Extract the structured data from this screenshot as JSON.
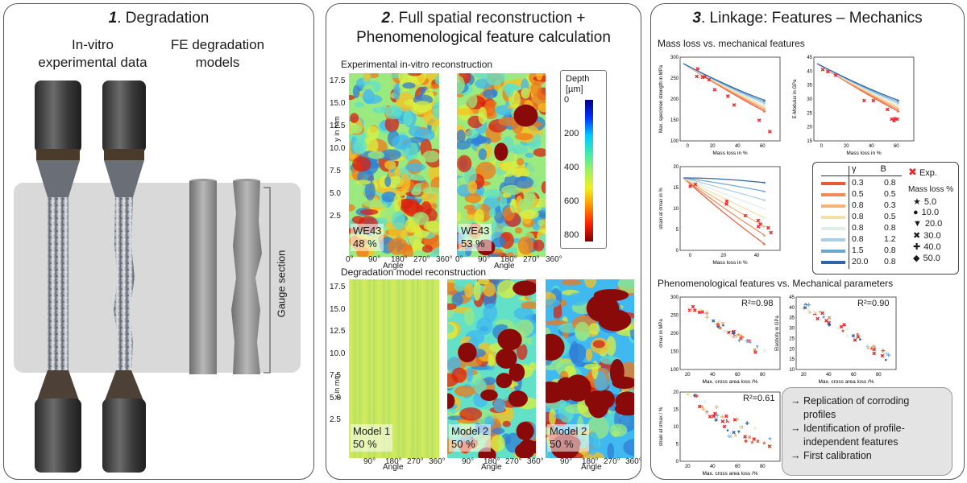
{
  "panel1": {
    "title_num": "1",
    "title_text": ". Degradation",
    "invitro_label_line1": "In-vitro",
    "invitro_label_line2": "experimental data",
    "fe_label_line1": "FE degradation",
    "fe_label_line2": "models",
    "gauge_label": "Gauge section"
  },
  "panel2": {
    "title_num": "2",
    "title_line1": ". Full spatial reconstruction +",
    "title_line2": "Phenomenological feature calculation",
    "exp_heading": "Experimental in-vitro reconstruction",
    "model_heading": "Degradation model reconstruction",
    "y_label": "y in mm",
    "x_label": "Angle",
    "y_ticks": [
      "17.5",
      "15.0",
      "12.5",
      "10.0",
      "7.5",
      "5.0",
      "2.5",
      "0"
    ],
    "x_ticks": [
      "0°",
      "90°",
      "180°",
      "270°",
      "360°"
    ],
    "x_ticks_model": [
      "90°",
      "180°",
      "270°",
      "360°"
    ],
    "maps": [
      {
        "name": "WE43",
        "value": "48 %"
      },
      {
        "name": "WE43",
        "value": "53 %"
      },
      {
        "name": "Model 1",
        "value": "50 %"
      },
      {
        "name": "Model 2",
        "value": "50 %"
      },
      {
        "name": "Model 2",
        "value": "50 %"
      }
    ],
    "colorbar": {
      "title_line1": "Depth",
      "title_line2": "[µm]",
      "ticks": [
        "0",
        "200",
        "400",
        "600",
        "800"
      ]
    }
  },
  "panel3": {
    "title_num": "3",
    "title_text": ". Linkage: Features – Mechanics",
    "mass_loss_heading": "Mass loss vs. mechanical features",
    "pheno_heading": "Phenomenological features vs. Mechanical parameters",
    "plots": {
      "strength": {
        "ylabel": "Max. specimen strength in MPa",
        "xlabel": "Mass loss in %",
        "y_ticks": [
          "300",
          "250",
          "200",
          "150",
          "100"
        ],
        "x_ticks": [
          "0",
          "20",
          "40",
          "60"
        ]
      },
      "emod": {
        "ylabel": "E-Modulus in GPa",
        "xlabel": "Mass loss in %",
        "y_ticks": [
          "45",
          "40",
          "35",
          "30",
          "25",
          "20",
          "15"
        ],
        "x_ticks": [
          "0",
          "20",
          "40",
          "60"
        ]
      },
      "strain": {
        "ylabel": "strain at σmax in %",
        "xlabel": "Mass loss in %",
        "y_ticks": [
          "20",
          "15",
          "10",
          "5",
          "0"
        ],
        "x_ticks": [
          "0",
          "20",
          "40"
        ]
      },
      "sigma_area": {
        "ylabel": "σmax in MPa",
        "xlabel": "Max. cross area loss /%",
        "r2": "R²=0.98",
        "y_ticks": [
          "300",
          "250",
          "200",
          "150",
          "100"
        ],
        "x_ticks": [
          "20",
          "40",
          "60",
          "80"
        ]
      },
      "elast_area": {
        "ylabel": "Elasticity in GPa",
        "xlabel": "Max. cross area loss /%",
        "r2": "R²=0.90",
        "y_ticks": [
          "45",
          "40",
          "35",
          "30",
          "25",
          "20",
          "15",
          "10"
        ],
        "x_ticks": [
          "20",
          "40",
          "60",
          "80"
        ]
      },
      "strain_area": {
        "ylabel": "strain at σmax / %",
        "xlabel": "Max. cross area loss /%",
        "r2": "R²=0.61",
        "y_ticks": [
          "20",
          "15",
          "10",
          "5",
          "0"
        ],
        "x_ticks": [
          "20",
          "40",
          "60",
          "80"
        ]
      }
    },
    "legend": {
      "gamma_header": "γ",
      "beta_header": "B",
      "rows": [
        {
          "gamma": "0.3",
          "beta": "0.8",
          "color": "#e8593c"
        },
        {
          "gamma": "0.5",
          "beta": "0.5",
          "color": "#f08a56"
        },
        {
          "gamma": "0.8",
          "beta": "0.3",
          "color": "#f5b57a"
        },
        {
          "gamma": "0.8",
          "beta": "0.5",
          "color": "#f7dfa8"
        },
        {
          "gamma": "0.8",
          "beta": "0.8",
          "color": "#dfeee6"
        },
        {
          "gamma": "0.8",
          "beta": "1.2",
          "color": "#a9cde3"
        },
        {
          "gamma": "1.5",
          "beta": "0.8",
          "color": "#6ea6d2"
        },
        {
          "gamma": "20.0",
          "beta": "0.8",
          "color": "#2f66ab"
        }
      ],
      "exp_label": "Exp.",
      "mass_loss_title": "Mass loss %",
      "markers": [
        {
          "symbol": "★",
          "label": "5.0"
        },
        {
          "symbol": "●",
          "label": "10.0"
        },
        {
          "symbol": "▼",
          "label": "20.0"
        },
        {
          "symbol": "✖",
          "label": "30.0"
        },
        {
          "symbol": "✚",
          "label": "40.0"
        },
        {
          "symbol": "◆",
          "label": "50.0"
        }
      ]
    },
    "conclusions": [
      "→ Replication of corroding",
      "profiles",
      "→ Identification of profile-",
      "independent features",
      "→ First calibration"
    ]
  },
  "colors": {
    "exp_marker": "#e8282b",
    "gauge_band": "#d9d9d9"
  }
}
